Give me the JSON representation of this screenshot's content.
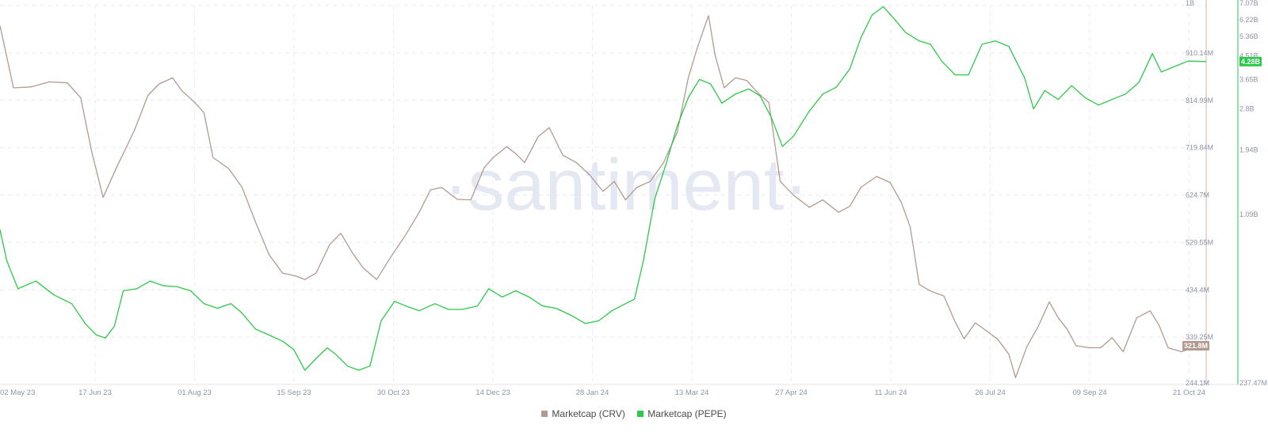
{
  "watermark": "·santiment·",
  "chart_data": {
    "type": "line",
    "x_start": "2023-05-02",
    "x_end": "2024-10-21",
    "x_ticks": [
      "02 May 23",
      "17 Jun 23",
      "01 Aug 23",
      "15 Sep 23",
      "30 Oct 23",
      "14 Dec 23",
      "28 Jan 24",
      "13 Mar 24",
      "27 Apr 24",
      "11 Jun 24",
      "26 Jul 24",
      "09 Sep 24",
      "21 Oct 24"
    ],
    "grid": true,
    "axes": [
      {
        "id": "crv",
        "position": "right-inner",
        "ticks": [
          "1B",
          "910.14M",
          "814.99M",
          "719.84M",
          "624.7M",
          "529.55M",
          "434.4M",
          "339.25M",
          "244.1M"
        ],
        "tick_values": [
          1005.3,
          910.14,
          814.99,
          719.84,
          624.7,
          529.55,
          434.4,
          339.25,
          244.1
        ],
        "range": [
          244.1,
          1005.3
        ],
        "unit": "M",
        "last_value_label": "321.8M"
      },
      {
        "id": "pepe",
        "position": "right-outer",
        "scale": "log",
        "ticks": [
          "7.07B",
          "6.22B",
          "5.36B",
          "4.51B",
          "3.65B",
          "2.8B",
          "1.94B",
          "1.09B",
          "237.47M"
        ],
        "tick_values": [
          7.07,
          6.22,
          5.36,
          4.51,
          3.65,
          2.8,
          1.94,
          1.09,
          0.23747
        ],
        "range": [
          0.23747,
          7.07
        ],
        "unit": "B",
        "last_value_label": "4.28B"
      }
    ],
    "series": [
      {
        "name": "Marketcap (CRV)",
        "axis": "crv",
        "color": "#b29a8f",
        "unit": "M",
        "points": [
          [
            "2023-05-02",
            965
          ],
          [
            "2023-05-08",
            840
          ],
          [
            "2023-05-16",
            842
          ],
          [
            "2023-05-24",
            852
          ],
          [
            "2023-06-01",
            850
          ],
          [
            "2023-06-07",
            820
          ],
          [
            "2023-06-12",
            710
          ],
          [
            "2023-06-17",
            620
          ],
          [
            "2023-06-23",
            680
          ],
          [
            "2023-07-01",
            755
          ],
          [
            "2023-07-07",
            825
          ],
          [
            "2023-07-12",
            848
          ],
          [
            "2023-07-18",
            860
          ],
          [
            "2023-07-22",
            835
          ],
          [
            "2023-07-28",
            810
          ],
          [
            "2023-08-01",
            790
          ],
          [
            "2023-08-05",
            700
          ],
          [
            "2023-08-12",
            678
          ],
          [
            "2023-08-18",
            640
          ],
          [
            "2023-08-24",
            570
          ],
          [
            "2023-08-30",
            505
          ],
          [
            "2023-09-05",
            468
          ],
          [
            "2023-09-11",
            462
          ],
          [
            "2023-09-15",
            455
          ],
          [
            "2023-09-20",
            468
          ],
          [
            "2023-09-26",
            525
          ],
          [
            "2023-10-01",
            548
          ],
          [
            "2023-10-06",
            510
          ],
          [
            "2023-10-11",
            478
          ],
          [
            "2023-10-17",
            455
          ],
          [
            "2023-10-23",
            498
          ],
          [
            "2023-10-30",
            545
          ],
          [
            "2023-11-05",
            590
          ],
          [
            "2023-11-10",
            635
          ],
          [
            "2023-11-15",
            640
          ],
          [
            "2023-11-22",
            616
          ],
          [
            "2023-11-28",
            615
          ],
          [
            "2023-12-04",
            680
          ],
          [
            "2023-12-08",
            700
          ],
          [
            "2023-12-14",
            722
          ],
          [
            "2023-12-18",
            708
          ],
          [
            "2023-12-22",
            690
          ],
          [
            "2023-12-28",
            742
          ],
          [
            "2024-01-02",
            760
          ],
          [
            "2024-01-08",
            705
          ],
          [
            "2024-01-14",
            690
          ],
          [
            "2024-01-20",
            665
          ],
          [
            "2024-01-26",
            632
          ],
          [
            "2024-01-31",
            652
          ],
          [
            "2024-02-05",
            615
          ],
          [
            "2024-02-10",
            640
          ],
          [
            "2024-02-16",
            652
          ],
          [
            "2024-02-22",
            690
          ],
          [
            "2024-02-28",
            750
          ],
          [
            "2024-03-04",
            860
          ],
          [
            "2024-03-08",
            920
          ],
          [
            "2024-03-13",
            985
          ],
          [
            "2024-03-16",
            905
          ],
          [
            "2024-03-20",
            840
          ],
          [
            "2024-03-25",
            860
          ],
          [
            "2024-03-30",
            855
          ],
          [
            "2024-04-04",
            830
          ],
          [
            "2024-04-09",
            810
          ],
          [
            "2024-04-14",
            652
          ],
          [
            "2024-04-20",
            624
          ],
          [
            "2024-04-27",
            600
          ],
          [
            "2024-05-03",
            615
          ],
          [
            "2024-05-10",
            590
          ],
          [
            "2024-05-15",
            602
          ],
          [
            "2024-05-20",
            640
          ],
          [
            "2024-05-27",
            662
          ],
          [
            "2024-06-02",
            650
          ],
          [
            "2024-06-07",
            610
          ],
          [
            "2024-06-11",
            560
          ],
          [
            "2024-06-15",
            445
          ],
          [
            "2024-06-20",
            432
          ],
          [
            "2024-06-26",
            422
          ],
          [
            "2024-07-01",
            370
          ],
          [
            "2024-07-05",
            336
          ],
          [
            "2024-07-10",
            368
          ],
          [
            "2024-07-15",
            352
          ],
          [
            "2024-07-20",
            335
          ],
          [
            "2024-07-25",
            305
          ],
          [
            "2024-07-28",
            258
          ],
          [
            "2024-08-02",
            320
          ],
          [
            "2024-08-07",
            360
          ],
          [
            "2024-08-12",
            410
          ],
          [
            "2024-08-16",
            378
          ],
          [
            "2024-08-20",
            355
          ],
          [
            "2024-08-24",
            322
          ],
          [
            "2024-08-30",
            318
          ],
          [
            "2024-09-04",
            318
          ],
          [
            "2024-09-09",
            338
          ],
          [
            "2024-09-14",
            310
          ],
          [
            "2024-09-20",
            378
          ],
          [
            "2024-09-26",
            392
          ],
          [
            "2024-09-30",
            363
          ],
          [
            "2024-10-04",
            318
          ],
          [
            "2024-10-10",
            310
          ],
          [
            "2024-10-15",
            318
          ],
          [
            "2024-10-21",
            322
          ]
        ]
      },
      {
        "name": "Marketcap (PEPE)",
        "axis": "pepe",
        "color": "#2ec84b",
        "unit": "B",
        "points": [
          [
            "2023-05-02",
            0.95
          ],
          [
            "2023-05-05",
            0.72
          ],
          [
            "2023-05-10",
            0.56
          ],
          [
            "2023-05-18",
            0.6
          ],
          [
            "2023-05-26",
            0.53
          ],
          [
            "2023-06-03",
            0.49
          ],
          [
            "2023-06-09",
            0.41
          ],
          [
            "2023-06-14",
            0.37
          ],
          [
            "2023-06-18",
            0.36
          ],
          [
            "2023-06-22",
            0.4
          ],
          [
            "2023-06-26",
            0.55
          ],
          [
            "2023-07-02",
            0.56
          ],
          [
            "2023-07-08",
            0.6
          ],
          [
            "2023-07-14",
            0.575
          ],
          [
            "2023-07-20",
            0.57
          ],
          [
            "2023-07-26",
            0.55
          ],
          [
            "2023-08-01",
            0.49
          ],
          [
            "2023-08-07",
            0.47
          ],
          [
            "2023-08-13",
            0.49
          ],
          [
            "2023-08-18",
            0.45
          ],
          [
            "2023-08-24",
            0.39
          ],
          [
            "2023-08-30",
            0.37
          ],
          [
            "2023-09-05",
            0.35
          ],
          [
            "2023-09-10",
            0.325
          ],
          [
            "2023-09-15",
            0.27
          ],
          [
            "2023-09-20",
            0.3
          ],
          [
            "2023-09-25",
            0.33
          ],
          [
            "2023-09-29",
            0.31
          ],
          [
            "2023-10-04",
            0.28
          ],
          [
            "2023-10-09",
            0.27
          ],
          [
            "2023-10-14",
            0.28
          ],
          [
            "2023-10-19",
            0.42
          ],
          [
            "2023-10-25",
            0.5
          ],
          [
            "2023-10-30",
            0.48
          ],
          [
            "2023-11-05",
            0.46
          ],
          [
            "2023-11-12",
            0.49
          ],
          [
            "2023-11-18",
            0.465
          ],
          [
            "2023-11-24",
            0.465
          ],
          [
            "2023-12-01",
            0.48
          ],
          [
            "2023-12-06",
            0.56
          ],
          [
            "2023-12-12",
            0.52
          ],
          [
            "2023-12-18",
            0.55
          ],
          [
            "2023-12-24",
            0.52
          ],
          [
            "2023-12-30",
            0.48
          ],
          [
            "2024-01-05",
            0.47
          ],
          [
            "2024-01-12",
            0.44
          ],
          [
            "2024-01-18",
            0.41
          ],
          [
            "2024-01-24",
            0.42
          ],
          [
            "2024-01-30",
            0.46
          ],
          [
            "2024-02-05",
            0.49
          ],
          [
            "2024-02-09",
            0.51
          ],
          [
            "2024-02-13",
            0.72
          ],
          [
            "2024-02-18",
            1.25
          ],
          [
            "2024-02-23",
            1.7
          ],
          [
            "2024-02-28",
            2.4
          ],
          [
            "2024-03-04",
            3.1
          ],
          [
            "2024-03-09",
            3.65
          ],
          [
            "2024-03-14",
            3.5
          ],
          [
            "2024-03-19",
            2.95
          ],
          [
            "2024-03-25",
            3.2
          ],
          [
            "2024-03-31",
            3.35
          ],
          [
            "2024-04-05",
            3.15
          ],
          [
            "2024-04-10",
            2.6
          ],
          [
            "2024-04-15",
            2.0
          ],
          [
            "2024-04-20",
            2.2
          ],
          [
            "2024-04-27",
            2.75
          ],
          [
            "2024-05-03",
            3.2
          ],
          [
            "2024-05-09",
            3.4
          ],
          [
            "2024-05-15",
            4.0
          ],
          [
            "2024-05-20",
            5.3
          ],
          [
            "2024-05-25",
            6.5
          ],
          [
            "2024-05-30",
            7.0
          ],
          [
            "2024-06-04",
            6.25
          ],
          [
            "2024-06-09",
            5.55
          ],
          [
            "2024-06-15",
            5.15
          ],
          [
            "2024-06-20",
            5.0
          ],
          [
            "2024-06-25",
            4.3
          ],
          [
            "2024-07-01",
            3.8
          ],
          [
            "2024-07-07",
            3.8
          ],
          [
            "2024-07-13",
            5.0
          ],
          [
            "2024-07-19",
            5.15
          ],
          [
            "2024-07-25",
            4.9
          ],
          [
            "2024-08-01",
            3.7
          ],
          [
            "2024-08-05",
            2.8
          ],
          [
            "2024-08-10",
            3.3
          ],
          [
            "2024-08-16",
            3.05
          ],
          [
            "2024-08-22",
            3.45
          ],
          [
            "2024-08-28",
            3.1
          ],
          [
            "2024-09-03",
            2.9
          ],
          [
            "2024-09-09",
            3.05
          ],
          [
            "2024-09-15",
            3.2
          ],
          [
            "2024-09-21",
            3.55
          ],
          [
            "2024-09-27",
            4.6
          ],
          [
            "2024-10-01",
            3.9
          ],
          [
            "2024-10-07",
            4.1
          ],
          [
            "2024-10-13",
            4.3
          ],
          [
            "2024-10-21",
            4.28
          ]
        ]
      }
    ]
  },
  "legend": [
    {
      "label": "Marketcap (CRV)",
      "color": "#b29a8f"
    },
    {
      "label": "Marketcap (PEPE)",
      "color": "#2ec84b"
    }
  ]
}
